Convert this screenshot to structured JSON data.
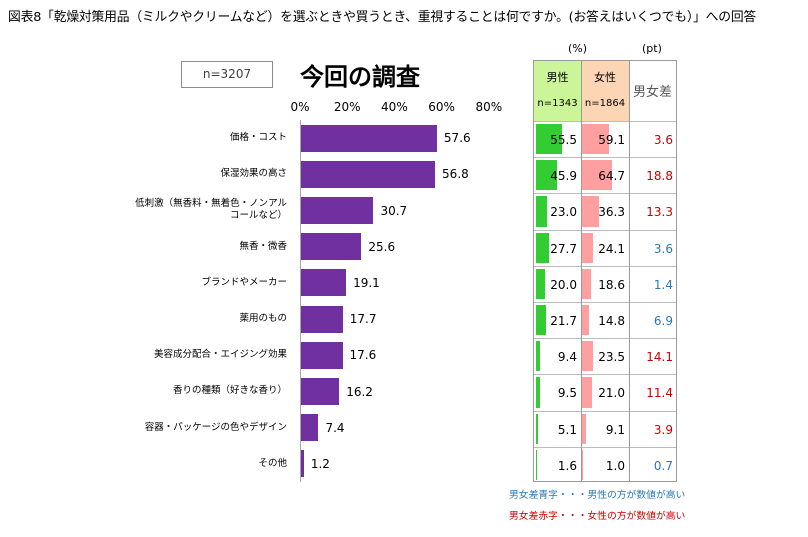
{
  "title": "図表8「乾燥対策用品（ミルクやクリームなど）を選ぶときや買うとき、重視することは何ですか。(お答えはいくつでも）」への回答",
  "sample_size": "n=3207",
  "colors": {
    "bar": "#7030a0",
    "male_bar": "#33cc33",
    "female_bar": "#ff9f9f",
    "male_header": "#ccf59a",
    "female_header": "#fcd5b4",
    "diff_red": "#cc0000",
    "diff_blue": "#2878bd",
    "diff_header_text": "#595959"
  },
  "chart_data": {
    "type": "bar",
    "orientation": "horizontal",
    "title": "今回の調査",
    "categories": [
      "価格・コスト",
      "保湿効果の高さ",
      "低刺激（無香料・無着色・ノンアル\nコールなど）",
      "無香・微香",
      "ブランドやメーカー",
      "薬用のもの",
      "美容成分配合・エイジング効果",
      "香りの種類（好きな香り）",
      "容器・パッケージの色やデザイン",
      "その他"
    ],
    "values": [
      57.6,
      56.8,
      30.7,
      25.6,
      19.1,
      17.7,
      17.6,
      16.2,
      7.4,
      1.2
    ],
    "xlim": [
      0,
      80
    ],
    "xticks": [
      0,
      20,
      40,
      60,
      80
    ],
    "xtick_labels": [
      "0%",
      "20%",
      "40%",
      "60%",
      "80%"
    ],
    "unit": "%",
    "grid": false
  },
  "table": {
    "unit_pct": "(%)",
    "unit_pt": "(pt)",
    "male_label": "男性",
    "male_n": "n=1343",
    "female_label": "女性",
    "female_n": "n=1864",
    "diff_label": "男女差",
    "rows": [
      {
        "male": 55.5,
        "female": 59.1,
        "diff": 3.6,
        "diff_color": "#cc0000"
      },
      {
        "male": 45.9,
        "female": 64.7,
        "diff": 18.8,
        "diff_color": "#cc0000"
      },
      {
        "male": 23.0,
        "female": 36.3,
        "diff": 13.3,
        "diff_color": "#cc0000"
      },
      {
        "male": 27.7,
        "female": 24.1,
        "diff": 3.6,
        "diff_color": "#2878bd"
      },
      {
        "male": 20.0,
        "female": 18.6,
        "diff": 1.4,
        "diff_color": "#2878bd"
      },
      {
        "male": 21.7,
        "female": 14.8,
        "diff": 6.9,
        "diff_color": "#2878bd"
      },
      {
        "male": 9.4,
        "female": 23.5,
        "diff": 14.1,
        "diff_color": "#cc0000"
      },
      {
        "male": 9.5,
        "female": 21.0,
        "diff": 11.4,
        "diff_color": "#cc0000"
      },
      {
        "male": 5.1,
        "female": 9.1,
        "diff": 3.9,
        "diff_color": "#cc0000"
      },
      {
        "male": 1.6,
        "female": 1.0,
        "diff": 0.7,
        "diff_color": "#2878bd"
      }
    ]
  },
  "notes": [
    {
      "text": "男女差青字・・・男性の方が数値が高い",
      "color": "#2878bd"
    },
    {
      "text": "男女差赤字・・・女性の方が数値が高い",
      "color": "#cc0000"
    }
  ]
}
